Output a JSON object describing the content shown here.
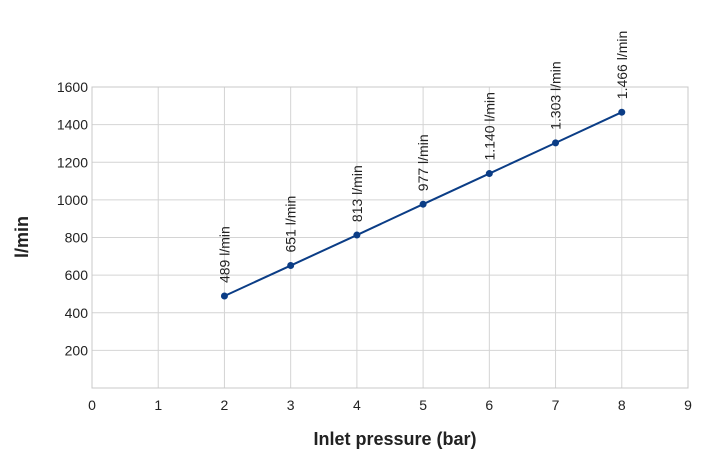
{
  "chart_data": {
    "type": "line",
    "title": "",
    "xlabel": "Inlet pressure (bar)",
    "ylabel": "l/min",
    "xlim": [
      0,
      9
    ],
    "ylim": [
      0,
      1600
    ],
    "x_ticks": [
      "0",
      "1",
      "2",
      "3",
      "4",
      "5",
      "6",
      "7",
      "8",
      "9"
    ],
    "y_ticks": [
      "200",
      "400",
      "600",
      "800",
      "1000",
      "1200",
      "1400",
      "1600"
    ],
    "grid": true,
    "series": [
      {
        "color": "#0b3d86",
        "x": [
          2,
          3,
          4,
          5,
          6,
          7,
          8
        ],
        "y": [
          489,
          651,
          813,
          977,
          1140,
          1303,
          1466
        ],
        "labels": [
          "489 l/min",
          "651 l/min",
          "813 l/min",
          "977 l/min",
          "1.140 l/min",
          "1.303 l/min",
          "1.466 l/min"
        ]
      }
    ]
  }
}
